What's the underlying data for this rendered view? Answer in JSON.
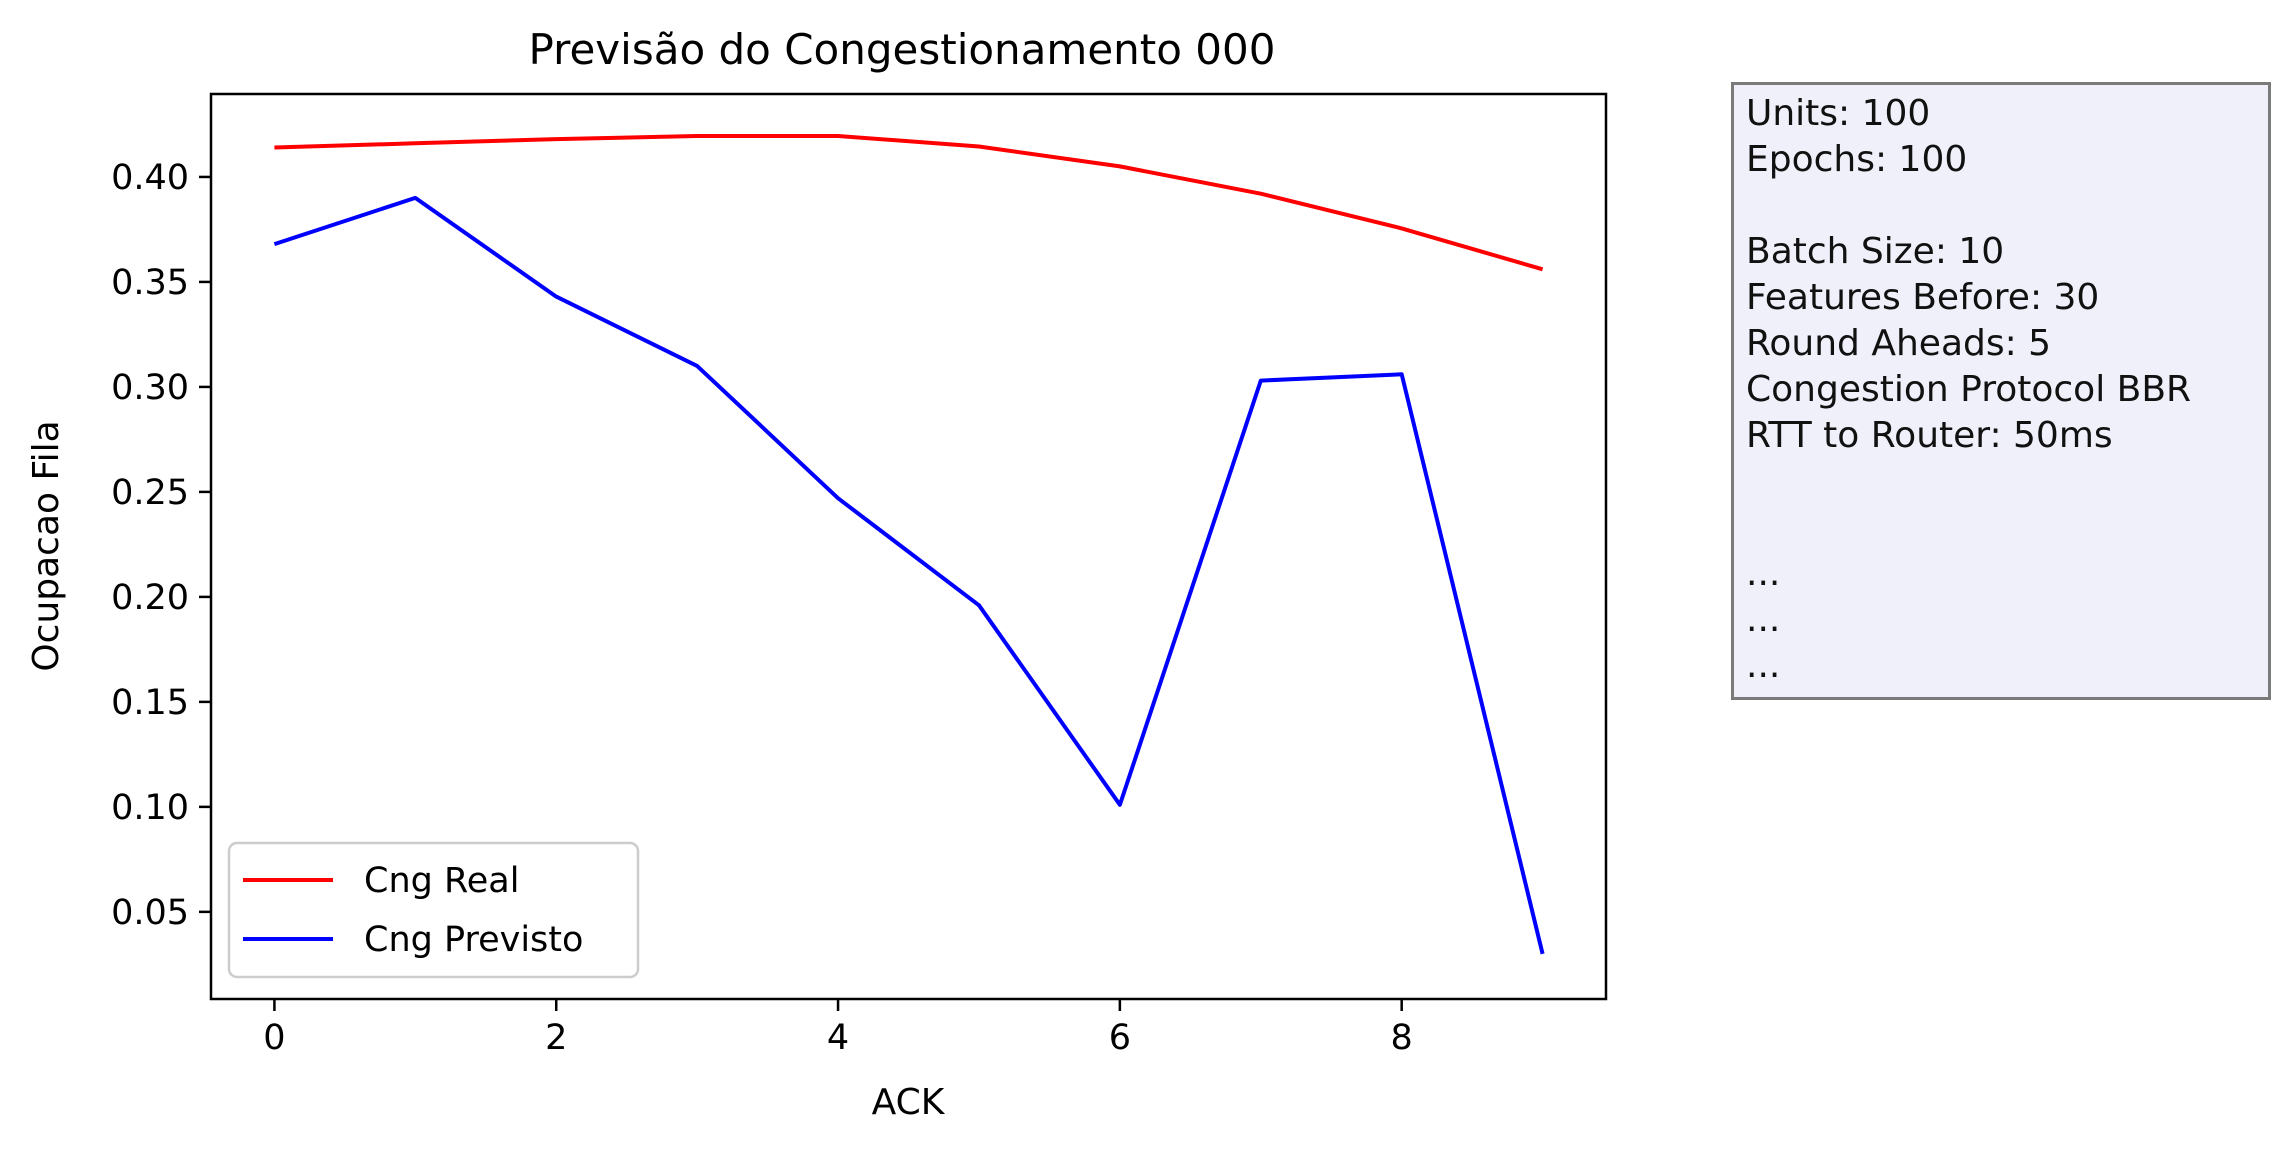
{
  "chart_data": {
    "type": "line",
    "title": "Previsão do Congestionamento 000",
    "xlabel": "ACK",
    "ylabel": "Ocupacao Fila",
    "x": [
      0,
      1,
      2,
      3,
      4,
      5,
      6,
      7,
      8,
      9
    ],
    "xlim": [
      -0.45,
      9.45
    ],
    "ylim": [
      0.0085,
      0.4395
    ],
    "xticks": [
      0,
      2,
      4,
      6,
      8
    ],
    "xtick_labels": [
      "0",
      "2",
      "4",
      "6",
      "8"
    ],
    "yticks": [
      0.05,
      0.1,
      0.15,
      0.2,
      0.25,
      0.3,
      0.35,
      0.4
    ],
    "ytick_labels": [
      "0.05",
      "0.10",
      "0.15",
      "0.20",
      "0.25",
      "0.30",
      "0.35",
      "0.40"
    ],
    "grid": false,
    "legend_position": "lower-left",
    "series": [
      {
        "name": "Cng Real",
        "color": "#ff0000",
        "values": [
          0.414,
          0.416,
          0.418,
          0.4195,
          0.4195,
          0.4145,
          0.405,
          0.392,
          0.3755,
          0.356
        ]
      },
      {
        "name": "Cng Previsto",
        "color": "#0000ff",
        "values": [
          0.368,
          0.39,
          0.343,
          0.31,
          0.247,
          0.196,
          0.101,
          0.303,
          0.306,
          0.03
        ]
      }
    ]
  },
  "info_panel": {
    "lines": [
      "Units: 100",
      "Epochs: 100",
      "",
      "Batch Size: 10",
      "Features Before: 30",
      "Round Aheads: 5",
      "Congestion Protocol BBR",
      "RTT to Router: 50ms",
      "",
      "",
      "...",
      "...",
      "..."
    ]
  }
}
